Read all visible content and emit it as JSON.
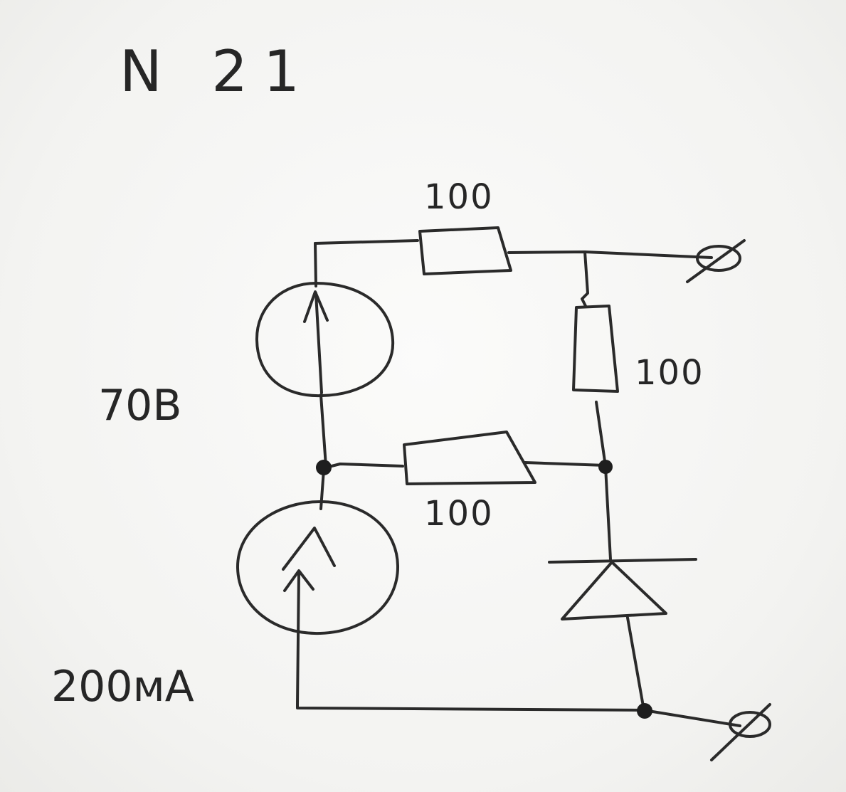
{
  "title": "N 21",
  "components": {
    "resistor_top": {
      "label": "100"
    },
    "resistor_right": {
      "label": "100"
    },
    "resistor_middle": {
      "label": "100"
    },
    "voltage_source": {
      "label": "70B"
    },
    "current_source": {
      "label": "200мА"
    },
    "terminal_top": {
      "label": "Ø"
    },
    "terminal_bottom": {
      "label": "Ø"
    }
  },
  "colors": {
    "ink": "#2a2a2a",
    "paper": "#f7f7f5"
  }
}
